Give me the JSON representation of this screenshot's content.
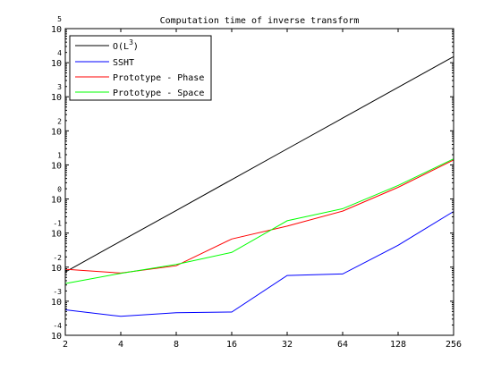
{
  "chart_data": {
    "type": "line",
    "title": "Computation time of inverse transform",
    "xlabel": "",
    "ylabel": "",
    "x_scale": "log2",
    "y_scale": "log10",
    "x": [
      2,
      4,
      8,
      16,
      32,
      64,
      128,
      256
    ],
    "xticks": [
      "2",
      "4",
      "8",
      "16",
      "32",
      "64",
      "128",
      "256"
    ],
    "yticks": [
      {
        "base": "10",
        "exp": "-4"
      },
      {
        "base": "10",
        "exp": "-3"
      },
      {
        "base": "10",
        "exp": "-2"
      },
      {
        "base": "10",
        "exp": "-1"
      },
      {
        "base": "10",
        "exp": "0"
      },
      {
        "base": "10",
        "exp": "1"
      },
      {
        "base": "10",
        "exp": "2"
      },
      {
        "base": "10",
        "exp": "3"
      },
      {
        "base": "10",
        "exp": "4"
      },
      {
        "base": "10",
        "exp": "5"
      }
    ],
    "xlim": [
      2,
      256
    ],
    "ylim": [
      0.0001,
      100000
    ],
    "grid": false,
    "legend_position": "top-left",
    "series": [
      {
        "label_main": "O(L",
        "label_sup": "3",
        "label_end": ")",
        "color": "#000000",
        "values": [
          0.0072,
          0.058,
          0.46,
          3.7,
          29.5,
          236,
          1890,
          15100
        ]
      },
      {
        "label_main": "SSHT",
        "color": "#0000ff",
        "values": [
          0.00056,
          0.00036,
          0.00046,
          0.00048,
          0.0057,
          0.0063,
          0.044,
          0.43
        ]
      },
      {
        "label_main": "Prototype - Phase",
        "color": "#ff0000",
        "values": [
          0.0087,
          0.0067,
          0.011,
          0.067,
          0.16,
          0.44,
          2.2,
          14
        ]
      },
      {
        "label_main": "Prototype - Space",
        "color": "#00ff00",
        "values": [
          0.0033,
          0.0066,
          0.012,
          0.027,
          0.23,
          0.52,
          2.5,
          15
        ]
      }
    ]
  }
}
